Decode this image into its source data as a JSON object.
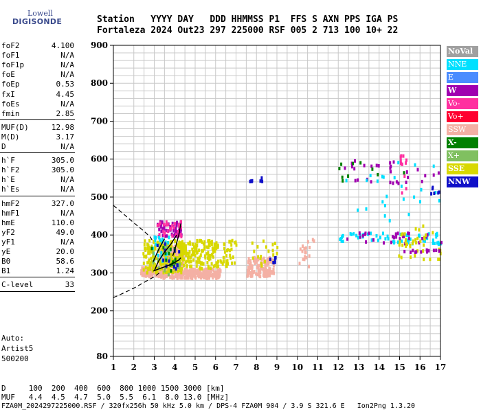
{
  "logo": {
    "line1": "Lowell",
    "line2": "DIGISONDE"
  },
  "header": {
    "line1": "Station   YYYY DAY   DDD HHMMSS P1  FFS S AXN PPS IGA PS",
    "line2": "Fortaleza 2024 Out23 297 225000 RSF 005 2 713 100 10+ 22"
  },
  "params": [
    {
      "group": 1,
      "k": "foF2",
      "v": "4.100"
    },
    {
      "group": 1,
      "k": "foF1",
      "v": "N/A"
    },
    {
      "group": 1,
      "k": "foF1p",
      "v": "N/A"
    },
    {
      "group": 1,
      "k": "foE",
      "v": "N/A"
    },
    {
      "group": 1,
      "k": "foEp",
      "v": "0.53"
    },
    {
      "group": 1,
      "k": "fxI",
      "v": "4.45"
    },
    {
      "group": 1,
      "k": "foEs",
      "v": "N/A"
    },
    {
      "group": 1,
      "k": "fmin",
      "v": "2.85"
    },
    {
      "group": 2,
      "k": "MUF(D)",
      "v": "12.98"
    },
    {
      "group": 2,
      "k": "M(D)",
      "v": "3.17"
    },
    {
      "group": 2,
      "k": "D",
      "v": "N/A"
    },
    {
      "group": 3,
      "k": "h`F",
      "v": "305.0"
    },
    {
      "group": 3,
      "k": "h`F2",
      "v": "305.0"
    },
    {
      "group": 3,
      "k": "h`E",
      "v": "N/A"
    },
    {
      "group": 3,
      "k": "h`Es",
      "v": "N/A"
    },
    {
      "group": 4,
      "k": "hmF2",
      "v": "327.0"
    },
    {
      "group": 4,
      "k": "hmF1",
      "v": "N/A"
    },
    {
      "group": 4,
      "k": "hmE",
      "v": "110.0"
    },
    {
      "group": 4,
      "k": "yF2",
      "v": "49.0"
    },
    {
      "group": 4,
      "k": "yF1",
      "v": "N/A"
    },
    {
      "group": 4,
      "k": "yE",
      "v": "20.0"
    },
    {
      "group": 4,
      "k": "B0",
      "v": "58.6"
    },
    {
      "group": 4,
      "k": "B1",
      "v": "1.24"
    },
    {
      "group": 5,
      "k": "C-level",
      "v": "33"
    }
  ],
  "auto": {
    "line1": "Auto:",
    "line2": "Artist5",
    "line3": "500200"
  },
  "legend": [
    {
      "label": "NoVal",
      "bg": "#a0a0a0",
      "fg": "#ffffff",
      "bold": true
    },
    {
      "label": "NNE",
      "bg": "#00e0ff",
      "fg": "#ffffff",
      "bold": false
    },
    {
      "label": "E",
      "bg": "#4a8cff",
      "fg": "#ffffff",
      "bold": false
    },
    {
      "label": "W",
      "bg": "#a000b0",
      "fg": "#ffffff",
      "bold": true
    },
    {
      "label": "Vo-",
      "bg": "#ff30a0",
      "fg": "#ffffff",
      "bold": false
    },
    {
      "label": "Vo+",
      "bg": "#ff0030",
      "fg": "#ffffff",
      "bold": false
    },
    {
      "label": "SSW",
      "bg": "#f4b0a4",
      "fg": "#ffffff",
      "bold": false
    },
    {
      "label": "X-",
      "bg": "#008000",
      "fg": "#ffffff",
      "bold": true
    },
    {
      "label": "X+",
      "bg": "#80c060",
      "fg": "#ffffff",
      "bold": false
    },
    {
      "label": "SSE",
      "bg": "#d8d800",
      "fg": "#ffffff",
      "bold": true
    },
    {
      "label": "NNW",
      "bg": "#1010c8",
      "fg": "#ffffff",
      "bold": true
    }
  ],
  "footer": {
    "d_row": "D     100  200  400  600  800 1000 1500 3000 [km]",
    "muf_row": "MUF   4.4  4.5  4.7  5.0  5.5  6.1  8.0 13.0 [MHz]",
    "file_row": "FZA0M_2024297225000.RSF / 320fx256h 50 kHz 5.0 km / DPS-4 FZA0M 904 / 3.9 S 321.6 E   Ion2Png 1.3.20"
  },
  "chart_data": {
    "type": "scatter",
    "title": "",
    "xlabel": "",
    "ylabel": "",
    "xlim": [
      1,
      17
    ],
    "ylim": [
      80,
      900
    ],
    "x_ticks": [
      "1",
      "2",
      "3",
      "4",
      "5",
      "6",
      "7",
      "8",
      "9",
      "10",
      "11",
      "12",
      "13",
      "14",
      "15",
      "16",
      "17"
    ],
    "y_ticks": [
      "80",
      "200",
      "300",
      "400",
      "500",
      "600",
      "700",
      "800",
      "900"
    ],
    "grid": true,
    "colors": {
      "SSW": "#f4b0a4",
      "SSE": "#d8d800",
      "X-": "#008000",
      "X+": "#80c060",
      "NNW": "#1010c8",
      "W": "#a000b0",
      "Vo-": "#ff30a0",
      "Vo+": "#ff0030",
      "NNE": "#00e0ff",
      "E": "#4a8cff",
      "NoVal": "#a0a0a0"
    },
    "echo_clusters": [
      {
        "f": [
          2.3,
          3.6
        ],
        "h": [
          295,
          318
        ],
        "n": 160,
        "c": "SSW"
      },
      {
        "f": [
          3.2,
          4.4
        ],
        "h": [
          290,
          375
        ],
        "n": 240,
        "c": "SSW"
      },
      {
        "f": [
          4.4,
          6.2
        ],
        "h": [
          290,
          315
        ],
        "n": 200,
        "c": "SSW"
      },
      {
        "f": [
          7.5,
          8.8
        ],
        "h": [
          295,
          345
        ],
        "n": 140,
        "c": "SSW"
      },
      {
        "f": [
          2.4,
          4.3
        ],
        "h": [
          305,
          390
        ],
        "n": 180,
        "c": "SSE"
      },
      {
        "f": [
          4.2,
          6.1
        ],
        "h": [
          315,
          390
        ],
        "n": 160,
        "c": "SSE"
      },
      {
        "f": [
          6.3,
          7.0
        ],
        "h": [
          320,
          390
        ],
        "n": 18,
        "c": "SSE"
      },
      {
        "f": [
          3.1,
          4.3
        ],
        "h": [
          400,
          440
        ],
        "n": 45,
        "c": "W"
      },
      {
        "f": [
          3.1,
          4.3
        ],
        "h": [
          400,
          440
        ],
        "n": 30,
        "c": "Vo-"
      },
      {
        "f": [
          2.8,
          3.8
        ],
        "h": [
          330,
          400
        ],
        "n": 22,
        "c": "NNE"
      },
      {
        "f": [
          2.8,
          4.2
        ],
        "h": [
          300,
          380
        ],
        "n": 25,
        "c": "X+"
      },
      {
        "f": [
          2.8,
          4.0
        ],
        "h": [
          300,
          380
        ],
        "n": 14,
        "c": "X-"
      },
      {
        "f": [
          3.0,
          4.2
        ],
        "h": [
          310,
          400
        ],
        "n": 12,
        "c": "NNW"
      },
      {
        "f": [
          5.9,
          6.8
        ],
        "h": [
          315,
          395
        ],
        "n": 20,
        "c": "SSE"
      },
      {
        "f": [
          7.7,
          9.0
        ],
        "h": [
          315,
          390
        ],
        "n": 20,
        "c": "SSE"
      },
      {
        "f": [
          8.6,
          8.9
        ],
        "h": [
          330,
          345
        ],
        "n": 6,
        "c": "NNW"
      },
      {
        "f": [
          10.0,
          10.8
        ],
        "h": [
          320,
          395
        ],
        "n": 20,
        "c": "SSW"
      },
      {
        "f": [
          12.0,
          17.0
        ],
        "h": [
          380,
          410
        ],
        "n": 60,
        "c": "NNE"
      },
      {
        "f": [
          12.0,
          17.0
        ],
        "h": [
          380,
          410
        ],
        "n": 30,
        "c": "W"
      },
      {
        "f": [
          14.9,
          17.0
        ],
        "h": [
          340,
          430
        ],
        "n": 40,
        "c": "SSE"
      },
      {
        "f": [
          15.0,
          17.0
        ],
        "h": [
          355,
          365
        ],
        "n": 12,
        "c": "W"
      },
      {
        "f": [
          11.8,
          17.0
        ],
        "h": [
          540,
          600
        ],
        "n": 30,
        "c": "W"
      },
      {
        "f": [
          11.8,
          17.0
        ],
        "h": [
          440,
          600
        ],
        "n": 25,
        "c": "NNE"
      },
      {
        "f": [
          15.0,
          15.3
        ],
        "h": [
          500,
          620
        ],
        "n": 12,
        "c": "Vo-"
      },
      {
        "f": [
          12.0,
          15.5
        ],
        "h": [
          540,
          600
        ],
        "n": 10,
        "c": "X-"
      },
      {
        "f": [
          7.6,
          8.3
        ],
        "h": [
          545,
          555
        ],
        "n": 8,
        "c": "NNW"
      },
      {
        "f": [
          16.4,
          17.0
        ],
        "h": [
          510,
          530
        ],
        "n": 6,
        "c": "NNW"
      }
    ],
    "profile_curves": [
      {
        "x": [
          1.0,
          1.5,
          2.0,
          2.5,
          3.0,
          3.3
        ],
        "y": [
          235,
          247,
          260,
          275,
          290,
          302
        ],
        "dashed": true
      },
      {
        "x": [
          1.0,
          1.5,
          2.0,
          2.5,
          2.8,
          2.95
        ],
        "y": [
          478,
          455,
          432,
          410,
          395,
          382
        ],
        "dashed": true
      },
      {
        "x": [
          2.95,
          3.3,
          3.6,
          3.8,
          4.0,
          4.2,
          4.3
        ],
        "y": [
          305,
          312,
          318,
          322,
          328,
          334,
          340
        ],
        "dashed": false
      },
      {
        "x": [
          3.0,
          3.2,
          3.5,
          3.8,
          4.0,
          4.1
        ],
        "y": [
          305,
          330,
          355,
          375,
          392,
          400
        ],
        "dashed": false
      },
      {
        "x": [
          3.9,
          4.0,
          4.1,
          4.2,
          4.3
        ],
        "y": [
          345,
          360,
          380,
          400,
          430
        ],
        "dashed": false
      },
      {
        "x": [
          2.95,
          3.2,
          3.5
        ],
        "y": [
          330,
          360,
          390
        ],
        "dashed": false
      }
    ]
  }
}
